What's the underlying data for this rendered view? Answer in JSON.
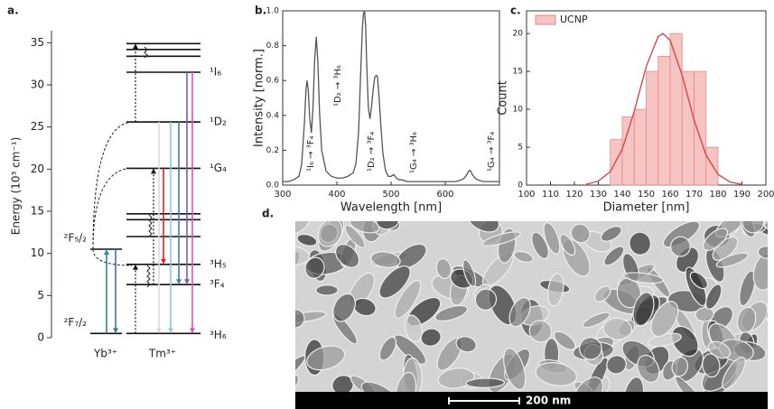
{
  "chart_data": [
    {
      "type": "energy-levels",
      "panel_label": "a.",
      "y_label": "Energy (10³ cm⁻¹)",
      "ylim": [
        0,
        36
      ],
      "yticks": [
        0,
        5,
        10,
        15,
        20,
        25,
        30,
        35
      ],
      "ions": [
        {
          "name": "Yb³⁺",
          "levels": [
            {
              "label": "²F₇/₂",
              "value": 0.5
            },
            {
              "label": "²F₅/₂",
              "value": 10.5
            }
          ]
        },
        {
          "name": "Tm³⁺",
          "levels": [
            {
              "label": "³H₆",
              "value": 0.5
            },
            {
              "label": "³F₄",
              "value": 6.3
            },
            {
              "label": "³H₅",
              "value": 8.7
            },
            {
              "label": null,
              "value": 12
            },
            {
              "label": null,
              "value": 14
            },
            {
              "label": null,
              "value": 14.7
            },
            {
              "label": "¹G₄",
              "value": 20.1
            },
            {
              "label": "¹D₂",
              "value": 25.6
            },
            {
              "label": "¹I₆",
              "value": 31.5
            },
            {
              "label": null,
              "value": 33.4
            },
            {
              "label": null,
              "value": 34.2
            },
            {
              "label": null,
              "value": 34.9
            }
          ]
        }
      ],
      "transitions": [
        {
          "from": 25.6,
          "to": 0.5,
          "color": "#dcdcdc"
        },
        {
          "from": 25.6,
          "to": 0.5,
          "color": "#8ecae6"
        },
        {
          "from": 25.6,
          "to": 6.3,
          "color": "#3d7fb0"
        },
        {
          "from": 31.5,
          "to": 6.3,
          "color": "#7b5ea7"
        },
        {
          "from": 31.5,
          "to": 0.5,
          "color": "#d94fd0"
        },
        {
          "from": 20.1,
          "to": 8.7,
          "color": "#e02020"
        },
        {
          "from": 0.5,
          "to": 10.5,
          "color": "#2a8a9a"
        },
        {
          "from": 10.5,
          "to": 0.5,
          "color": "#3a7aa0"
        },
        {
          "from": 0.5,
          "to": 8.7,
          "color": "#111111",
          "style": "dotted"
        },
        {
          "from": 6.3,
          "to": 20.1,
          "color": "#111111",
          "style": "dotted"
        },
        {
          "from": 25.6,
          "to": 34.9,
          "color": "#111111",
          "style": "dotted"
        }
      ]
    },
    {
      "type": "line",
      "panel_label": "b.",
      "x_label": "Wavelength [nm]",
      "y_label": "Intensity [norm.]",
      "xlim": [
        300,
        700
      ],
      "xticks": [
        300,
        400,
        500,
        600
      ],
      "ylim": [
        0,
        1
      ],
      "yticks": [
        {
          "value": 0,
          "label": "0.0"
        },
        0.2,
        0.4,
        0.6,
        0.8,
        {
          "value": 1,
          "label": "1.0"
        }
      ],
      "annotations": [
        "¹I₆ → ³F₄",
        "¹D₂ → ³H₆",
        "¹D₂ → ³F₄",
        "¹G₄ → ³H₆",
        "¹G₄ → ³F₄"
      ],
      "color": "#555555",
      "x": [
        300,
        310,
        320,
        330,
        335,
        340,
        343,
        345,
        347,
        350,
        353,
        356,
        359,
        362,
        365,
        368,
        372,
        380,
        390,
        400,
        410,
        420,
        430,
        435,
        440,
        444,
        447,
        449,
        451,
        453,
        455,
        458,
        461,
        464,
        467,
        470,
        473,
        475,
        478,
        481,
        485,
        490,
        495,
        500,
        505,
        510,
        515,
        520,
        530,
        540,
        560,
        580,
        600,
        620,
        630,
        635,
        640,
        643,
        645,
        647,
        650,
        655,
        660,
        670,
        680,
        690,
        700
      ],
      "values": [
        0.02,
        0.02,
        0.03,
        0.05,
        0.12,
        0.35,
        0.55,
        0.6,
        0.55,
        0.38,
        0.3,
        0.45,
        0.72,
        0.85,
        0.7,
        0.42,
        0.2,
        0.08,
        0.05,
        0.04,
        0.04,
        0.05,
        0.07,
        0.12,
        0.3,
        0.65,
        0.9,
        0.98,
        1.0,
        0.92,
        0.7,
        0.45,
        0.38,
        0.45,
        0.55,
        0.62,
        0.63,
        0.62,
        0.5,
        0.35,
        0.18,
        0.08,
        0.05,
        0.05,
        0.06,
        0.04,
        0.03,
        0.03,
        0.02,
        0.02,
        0.02,
        0.02,
        0.02,
        0.02,
        0.03,
        0.04,
        0.06,
        0.08,
        0.085,
        0.08,
        0.06,
        0.04,
        0.03,
        0.02,
        0.02,
        0.02,
        0.02
      ]
    },
    {
      "type": "histogram",
      "panel_label": "c.",
      "x_label": "Diameter [nm]",
      "y_label": "Count",
      "xlim": [
        100,
        200
      ],
      "xticks": [
        100,
        110,
        120,
        130,
        140,
        150,
        160,
        170,
        180,
        190,
        200
      ],
      "ylim": [
        0,
        23
      ],
      "yticks": [
        0,
        5,
        10,
        15,
        20
      ],
      "legend": "upper left",
      "bins": [
        135,
        140,
        145,
        150,
        155,
        160,
        165,
        170,
        175,
        180
      ],
      "series": [
        {
          "name": "UCNP",
          "color": "#f7c4c4",
          "edge_color": "#e08a8a",
          "values": [
            6,
            9,
            10,
            15,
            17,
            20,
            15,
            15,
            5
          ]
        }
      ],
      "fit": {
        "color": "#d94848",
        "x": [
          125,
          130,
          135,
          140,
          145,
          150,
          155,
          157,
          160,
          165,
          170,
          175,
          180,
          185,
          190
        ],
        "values": [
          0.12,
          0.52,
          1.78,
          4.72,
          9.73,
          15.65,
          19.6,
          20,
          19.12,
          14.52,
          8.59,
          3.96,
          1.42,
          0.4,
          0.09
        ]
      }
    }
  ],
  "image": {
    "panel_label": "d.",
    "scale_bar": "200 nm"
  }
}
